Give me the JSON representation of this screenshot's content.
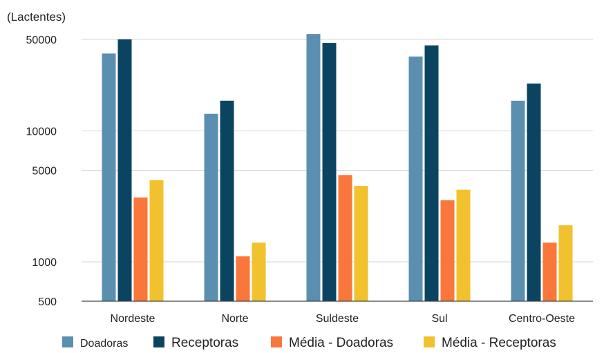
{
  "chart_data": {
    "type": "bar",
    "title": "",
    "ylabel": "(Lactentes)",
    "xlabel": "",
    "yscale": "log",
    "ylim": [
      500,
      60000
    ],
    "yticks": [
      500,
      1000,
      5000,
      10000,
      50000
    ],
    "ytick_labels": [
      "500",
      "1000",
      "5000",
      "10000",
      "50000"
    ],
    "grid": true,
    "legend_position": "bottom",
    "categories": [
      "Nordeste",
      "Norte",
      "Suldeste",
      "Sul",
      "Centro-Oeste"
    ],
    "series": [
      {
        "name": "Doadoras",
        "color": "#5b8fb0",
        "values": [
          39000,
          13500,
          55000,
          37000,
          17000
        ]
      },
      {
        "name": "Receptoras",
        "color": "#0b4461",
        "values": [
          50000,
          17000,
          47000,
          45000,
          23000
        ]
      },
      {
        "name": "Média - Doadoras",
        "color": "#f9773a",
        "values": [
          3100,
          1100,
          4600,
          2950,
          1400
        ]
      },
      {
        "name": "Média - Receptoras",
        "color": "#f2c12e",
        "values": [
          4200,
          1400,
          3800,
          3550,
          1900
        ]
      }
    ]
  }
}
